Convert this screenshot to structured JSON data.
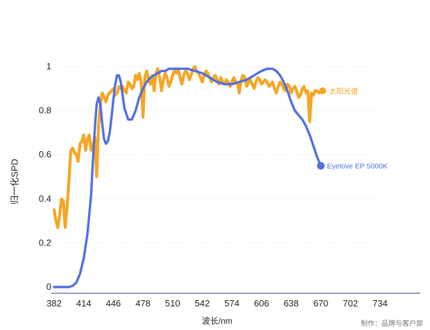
{
  "chart_data": {
    "type": "line",
    "xlabel": "波长/nm",
    "ylabel": "归一化SPD",
    "xlim": [
      382,
      734
    ],
    "ylim": [
      0,
      1
    ],
    "x_ticks": [
      "382",
      "414",
      "446",
      "478",
      "510",
      "542",
      "574",
      "606",
      "638",
      "670",
      "702",
      "734"
    ],
    "y_ticks": [
      "0",
      "0.2",
      "0.4",
      "0.6",
      "0.8",
      "1"
    ],
    "grid": true,
    "legend": "end-of-line labels",
    "colors": {
      "Eyelove EP 5000K": "#4f6fe3",
      "太阳光谱": "#f5a623"
    },
    "series": [
      {
        "name": "Eyelove EP 5000K",
        "x": [
          382,
          390,
          398,
          402,
          406,
          410,
          414,
          418,
          422,
          424,
          426,
          428,
          430,
          432,
          434,
          436,
          438,
          440,
          442,
          444,
          446,
          448,
          450,
          452,
          454,
          456,
          458,
          462,
          466,
          470,
          474,
          478,
          482,
          486,
          490,
          494,
          498,
          502,
          506,
          510,
          518,
          526,
          534,
          542,
          550,
          558,
          566,
          574,
          582,
          590,
          598,
          606,
          612,
          618,
          622,
          626,
          630,
          634,
          638,
          642,
          646,
          650,
          654,
          658,
          662,
          666,
          670
        ],
        "y": [
          0.0,
          0.0,
          0.0,
          0.005,
          0.02,
          0.06,
          0.13,
          0.24,
          0.42,
          0.58,
          0.72,
          0.83,
          0.86,
          0.83,
          0.74,
          0.67,
          0.65,
          0.66,
          0.7,
          0.77,
          0.85,
          0.92,
          0.96,
          0.96,
          0.93,
          0.87,
          0.81,
          0.76,
          0.76,
          0.8,
          0.86,
          0.9,
          0.93,
          0.95,
          0.96,
          0.97,
          0.98,
          0.98,
          0.99,
          0.99,
          0.99,
          0.99,
          0.98,
          0.97,
          0.95,
          0.93,
          0.92,
          0.92,
          0.93,
          0.94,
          0.96,
          0.98,
          0.99,
          0.99,
          0.98,
          0.96,
          0.93,
          0.89,
          0.84,
          0.8,
          0.78,
          0.76,
          0.73,
          0.69,
          0.64,
          0.59,
          0.55
        ]
      },
      {
        "name": "太阳光谱",
        "x": [
          382,
          384,
          386,
          388,
          390,
          392,
          394,
          396,
          398,
          400,
          402,
          404,
          406,
          408,
          410,
          412,
          414,
          416,
          418,
          420,
          422,
          424,
          426,
          428,
          430,
          432,
          434,
          436,
          438,
          440,
          442,
          444,
          446,
          448,
          450,
          452,
          454,
          456,
          458,
          460,
          462,
          464,
          466,
          468,
          470,
          472,
          474,
          476,
          478,
          480,
          482,
          484,
          486,
          488,
          490,
          492,
          494,
          496,
          498,
          500,
          502,
          504,
          506,
          508,
          510,
          512,
          514,
          516,
          518,
          520,
          522,
          524,
          526,
          528,
          530,
          532,
          534,
          536,
          538,
          540,
          542,
          544,
          546,
          548,
          550,
          552,
          554,
          556,
          558,
          560,
          562,
          564,
          566,
          568,
          570,
          572,
          574,
          576,
          578,
          580,
          582,
          584,
          586,
          588,
          590,
          592,
          594,
          596,
          598,
          600,
          602,
          604,
          606,
          608,
          610,
          612,
          614,
          616,
          618,
          620,
          622,
          624,
          626,
          628,
          630,
          632,
          634,
          636,
          638,
          640,
          642,
          644,
          646,
          648,
          650,
          652,
          654,
          656,
          658,
          660,
          662,
          664,
          666,
          668,
          670,
          672
        ],
        "y": [
          0.35,
          0.3,
          0.27,
          0.33,
          0.4,
          0.39,
          0.27,
          0.36,
          0.48,
          0.62,
          0.63,
          0.61,
          0.6,
          0.57,
          0.65,
          0.66,
          0.69,
          0.62,
          0.67,
          0.69,
          0.62,
          0.64,
          0.68,
          0.5,
          0.73,
          0.83,
          0.88,
          0.86,
          0.84,
          0.87,
          0.88,
          0.89,
          0.9,
          0.87,
          0.88,
          0.91,
          0.9,
          0.91,
          0.89,
          0.88,
          0.93,
          0.92,
          0.9,
          0.91,
          0.96,
          0.94,
          0.97,
          0.93,
          0.77,
          0.95,
          0.98,
          0.94,
          0.92,
          0.96,
          0.89,
          0.97,
          0.99,
          0.95,
          0.89,
          0.94,
          0.97,
          0.95,
          0.91,
          0.93,
          0.96,
          0.98,
          0.97,
          0.99,
          0.95,
          0.92,
          0.96,
          0.98,
          0.97,
          0.94,
          0.96,
          0.99,
          1.0,
          0.98,
          0.97,
          0.95,
          0.93,
          0.96,
          0.98,
          0.97,
          0.95,
          0.93,
          0.95,
          0.96,
          0.94,
          0.92,
          0.95,
          0.93,
          0.92,
          0.94,
          0.93,
          0.91,
          0.93,
          0.95,
          0.93,
          0.92,
          0.88,
          0.94,
          0.96,
          0.95,
          0.91,
          0.93,
          0.94,
          0.92,
          0.9,
          0.93,
          0.95,
          0.94,
          0.92,
          0.93,
          0.94,
          0.93,
          0.91,
          0.92,
          0.93,
          0.9,
          0.88,
          0.91,
          0.93,
          0.92,
          0.9,
          0.89,
          0.92,
          0.91,
          0.88,
          0.9,
          0.91,
          0.89,
          0.86,
          0.87,
          0.9,
          0.91,
          0.88,
          0.89,
          0.75,
          0.88,
          0.87,
          0.89,
          0.89,
          0.88,
          0.89,
          0.89
        ]
      }
    ]
  },
  "credit": "制作：品牌与客户部"
}
